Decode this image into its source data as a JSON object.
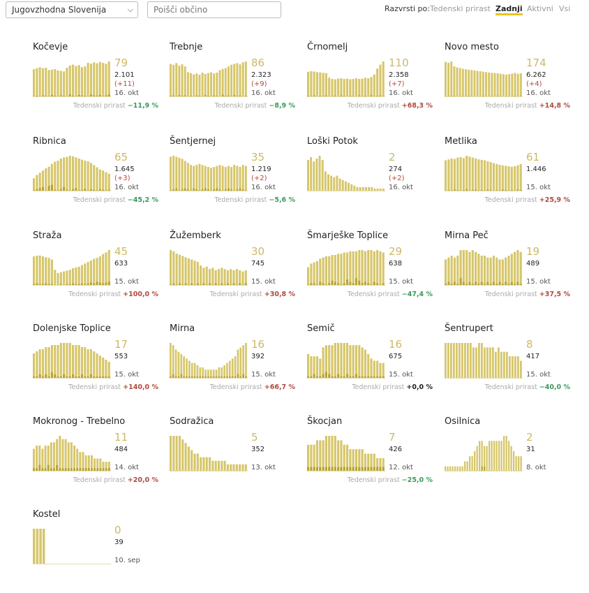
{
  "filters": {
    "region_selected": "Jugovzhodna Slovenija",
    "search_placeholder": "Poišči občino"
  },
  "sort": {
    "label": "Razvrsti po:",
    "options": [
      "Tedenski prirast",
      "Zadnji",
      "Aktivni",
      "Vsi"
    ],
    "active": "Zadnji"
  },
  "growth_label": "Tedenski prirast",
  "colors": {
    "bar": "#d6c66a",
    "bar_dark": "#b8a332",
    "accent": "#e8c51f",
    "number": "#cdb964",
    "neg": "#3a9a5b",
    "pos": "#b0493b"
  },
  "chart_data": [
    {
      "type": "bar",
      "name": "Kočevje",
      "big": "79",
      "total": "2.101",
      "delta": "(+11)",
      "date": "16. okt",
      "growth": "−11,9 %",
      "gsign": "neg",
      "values": [
        62,
        64,
        66,
        64,
        65,
        60,
        61,
        62,
        59,
        58,
        57,
        65,
        70,
        72,
        69,
        71,
        66,
        68,
        76,
        74,
        77,
        75,
        78,
        76,
        74,
        79
      ],
      "dark": [
        2,
        3,
        2,
        4,
        3,
        2,
        5,
        3,
        2,
        4,
        3,
        2,
        6,
        3,
        2,
        5,
        4,
        3,
        2,
        6,
        4,
        3,
        5,
        2,
        4,
        6
      ]
    },
    {
      "type": "bar",
      "name": "Trebnje",
      "big": "86",
      "total": "2.323",
      "delta": "(+9)",
      "date": "16. okt",
      "growth": "−8,9 %",
      "gsign": "neg",
      "values": [
        80,
        78,
        82,
        76,
        79,
        74,
        60,
        58,
        55,
        57,
        54,
        59,
        56,
        58,
        60,
        57,
        59,
        65,
        68,
        70,
        74,
        78,
        80,
        82,
        79,
        84,
        86
      ],
      "dark": [
        3,
        4,
        2,
        5,
        3,
        4,
        2,
        3,
        2,
        4,
        3,
        2,
        5,
        3,
        2,
        4,
        3,
        2,
        6,
        3,
        4,
        2,
        5,
        3,
        4,
        2,
        3
      ]
    },
    {
      "type": "bar",
      "name": "Črnomelj",
      "big": "110",
      "total": "2.358",
      "delta": "(+7)",
      "date": "16. okt",
      "growth": "+68,3 %",
      "gsign": "pos",
      "values": [
        78,
        80,
        79,
        77,
        76,
        75,
        74,
        60,
        56,
        55,
        57,
        58,
        56,
        57,
        55,
        56,
        58,
        56,
        57,
        60,
        58,
        62,
        70,
        88,
        100,
        110
      ],
      "dark": [
        4,
        3,
        5,
        2,
        4,
        3,
        5,
        2,
        3,
        4,
        2,
        5,
        3,
        2,
        4,
        3,
        2,
        5,
        3,
        4,
        2,
        6,
        3,
        4,
        5,
        3
      ]
    },
    {
      "type": "bar",
      "name": "Novo mesto",
      "big": "174",
      "total": "6.262",
      "delta": "(+4)",
      "date": "16. okt",
      "growth": "+14,8 %",
      "gsign": "pos",
      "values": [
        172,
        168,
        174,
        150,
        145,
        142,
        138,
        136,
        134,
        132,
        130,
        128,
        126,
        124,
        122,
        120,
        118,
        117,
        116,
        114,
        112,
        110,
        112,
        115,
        118,
        114,
        116
      ],
      "dark": [
        3,
        5,
        4,
        6,
        3,
        4,
        5,
        2,
        6,
        3,
        4,
        5,
        3,
        6,
        2,
        4,
        5,
        3,
        6,
        4,
        2,
        5,
        3,
        4,
        6,
        3,
        5
      ]
    },
    {
      "type": "bar",
      "name": "Ribnica",
      "big": "65",
      "total": "1.645",
      "delta": "(+3)",
      "date": "16. okt",
      "growth": "−45,2 %",
      "gsign": "neg",
      "values": [
        24,
        30,
        34,
        38,
        42,
        45,
        50,
        54,
        56,
        60,
        62,
        63,
        65,
        64,
        62,
        60,
        58,
        56,
        55,
        52,
        48,
        44,
        40,
        38,
        35,
        32
      ],
      "dark": [
        2,
        4,
        6,
        8,
        2,
        10,
        12,
        3,
        2,
        4,
        8,
        3,
        2,
        4,
        6,
        2,
        3,
        5,
        2,
        4,
        3,
        2,
        4,
        3,
        2,
        3
      ]
    },
    {
      "type": "bar",
      "name": "Šentjernej",
      "big": "35",
      "total": "1.219",
      "delta": "(+2)",
      "date": "16. okt",
      "growth": "−5,6 %",
      "gsign": "neg",
      "values": [
        34,
        35,
        34,
        33,
        32,
        30,
        28,
        26,
        25,
        26,
        27,
        26,
        25,
        24,
        23,
        24,
        25,
        26,
        25,
        24,
        25,
        24,
        26,
        25,
        24,
        26,
        25
      ],
      "dark": [
        1,
        2,
        3,
        1,
        2,
        3,
        2,
        1,
        3,
        2,
        1,
        2,
        3,
        2,
        1,
        2,
        3,
        2,
        1,
        2,
        3,
        2,
        1,
        2,
        3,
        2,
        1
      ]
    },
    {
      "type": "bar",
      "name": "Loški Potok",
      "big": "2",
      "total": "274",
      "delta": "(+2)",
      "date": "16. okt",
      "growth": "",
      "gsign": "zero",
      "values": [
        22,
        24,
        21,
        23,
        25,
        22,
        14,
        12,
        11,
        10,
        11,
        9,
        8,
        7,
        6,
        5,
        4,
        3,
        3,
        3,
        3,
        3,
        3,
        2,
        2,
        2,
        2
      ],
      "dark": [
        0,
        0,
        0,
        0,
        0,
        0,
        0,
        0,
        0,
        0,
        0,
        0,
        0,
        0,
        0,
        0,
        0,
        0,
        0,
        0,
        0,
        0,
        0,
        0,
        0,
        0,
        0
      ]
    },
    {
      "type": "bar",
      "name": "Metlika",
      "big": "61",
      "total": "1.446",
      "delta": "",
      "date": "15. okt",
      "growth": "+25,9 %",
      "gsign": "pos",
      "values": [
        68,
        70,
        72,
        71,
        74,
        75,
        73,
        78,
        76,
        74,
        72,
        70,
        69,
        68,
        66,
        64,
        62,
        60,
        58,
        57,
        56,
        55,
        54,
        55,
        57,
        60
      ],
      "dark": [
        2,
        3,
        2,
        4,
        3,
        2,
        3,
        5,
        2,
        3,
        4,
        2,
        3,
        2,
        4,
        3,
        2,
        3,
        2,
        4,
        3,
        2,
        3,
        2,
        4,
        3
      ]
    },
    {
      "type": "bar",
      "name": "Straža",
      "big": "45",
      "total": "633",
      "delta": "",
      "date": "15. okt",
      "growth": "+100,0 %",
      "gsign": "pos",
      "values": [
        37,
        38,
        38,
        37,
        36,
        35,
        33,
        20,
        16,
        17,
        18,
        19,
        20,
        22,
        23,
        24,
        26,
        28,
        30,
        32,
        34,
        35,
        37,
        40,
        42,
        45
      ],
      "dark": [
        2,
        3,
        2,
        2,
        3,
        2,
        2,
        1,
        1,
        2,
        1,
        2,
        2,
        3,
        2,
        2,
        3,
        2,
        3,
        4,
        3,
        5,
        4,
        3,
        4,
        5
      ]
    },
    {
      "type": "bar",
      "name": "Žužemberk",
      "big": "30",
      "total": "745",
      "delta": "",
      "date": "15. okt",
      "growth": "+30,8 %",
      "gsign": "pos",
      "values": [
        30,
        29,
        27,
        26,
        25,
        24,
        23,
        22,
        21,
        20,
        17,
        15,
        16,
        14,
        15,
        13,
        14,
        15,
        14,
        13,
        14,
        13,
        14,
        13,
        12,
        13
      ],
      "dark": [
        1,
        2,
        1,
        2,
        1,
        2,
        1,
        2,
        1,
        2,
        1,
        2,
        1,
        2,
        1,
        2,
        1,
        2,
        1,
        2,
        1,
        2,
        1,
        2,
        1,
        2
      ]
    },
    {
      "type": "bar",
      "name": "Šmarješke Toplice",
      "big": "29",
      "total": "638",
      "delta": "",
      "date": "15. okt",
      "growth": "−47,4 %",
      "gsign": "neg",
      "values": [
        15,
        18,
        19,
        20,
        22,
        23,
        24,
        24,
        25,
        25,
        26,
        26,
        27,
        27,
        28,
        28,
        28,
        29,
        29,
        28,
        29,
        29,
        28,
        29,
        28,
        27
      ],
      "dark": [
        1,
        2,
        2,
        1,
        3,
        2,
        1,
        2,
        4,
        3,
        2,
        1,
        2,
        5,
        3,
        2,
        6,
        4,
        2,
        3,
        2,
        1,
        3,
        2,
        1,
        2
      ]
    },
    {
      "type": "bar",
      "name": "Mirna Peč",
      "big": "19",
      "total": "489",
      "delta": "",
      "date": "15. okt",
      "growth": "+37,5 %",
      "gsign": "pos",
      "values": [
        14,
        15,
        16,
        15,
        16,
        19,
        19,
        19,
        18,
        19,
        18,
        17,
        16,
        16,
        15,
        15,
        16,
        15,
        14,
        14,
        15,
        16,
        17,
        18,
        19,
        18
      ],
      "dark": [
        1,
        2,
        1,
        2,
        1,
        4,
        2,
        1,
        2,
        1,
        2,
        1,
        2,
        1,
        2,
        1,
        2,
        1,
        2,
        1,
        2,
        1,
        2,
        1,
        2,
        1
      ]
    },
    {
      "type": "bar",
      "name": "Dolenjske Toplice",
      "big": "17",
      "total": "553",
      "delta": "",
      "date": "15. okt",
      "growth": "+140,0 %",
      "gsign": "pos",
      "values": [
        12,
        13,
        14,
        14,
        15,
        15,
        16,
        16,
        16,
        17,
        17,
        17,
        17,
        16,
        16,
        16,
        15,
        15,
        14,
        14,
        13,
        12,
        11,
        10,
        9,
        8
      ],
      "dark": [
        1,
        1,
        2,
        1,
        2,
        1,
        3,
        2,
        1,
        1,
        2,
        1,
        1,
        2,
        1,
        1,
        2,
        1,
        1,
        2,
        1,
        1,
        1,
        1,
        1,
        1
      ]
    },
    {
      "type": "bar",
      "name": "Mirna",
      "big": "16",
      "total": "392",
      "delta": "",
      "date": "15. okt",
      "growth": "+66,7 %",
      "gsign": "pos",
      "values": [
        16,
        15,
        13,
        12,
        11,
        10,
        9,
        8,
        7,
        7,
        6,
        5,
        5,
        4,
        4,
        4,
        4,
        4,
        5,
        5,
        6,
        7,
        8,
        9,
        10,
        13,
        14,
        15,
        16
      ],
      "dark": [
        1,
        2,
        1,
        1,
        2,
        1,
        1,
        1,
        1,
        1,
        1,
        1,
        1,
        1,
        1,
        1,
        1,
        1,
        1,
        1,
        1,
        1,
        1,
        1,
        1,
        2,
        1,
        2,
        1
      ]
    },
    {
      "type": "bar",
      "name": "Semič",
      "big": "16",
      "total": "675",
      "delta": "",
      "date": "15. okt",
      "growth": "+0,0 %",
      "gsign": "zero",
      "values": [
        11,
        10,
        10,
        10,
        9,
        14,
        15,
        15,
        15,
        16,
        16,
        16,
        16,
        16,
        15,
        15,
        15,
        15,
        14,
        13,
        11,
        9,
        8,
        8,
        7,
        7
      ],
      "dark": [
        1,
        1,
        2,
        1,
        1,
        2,
        3,
        2,
        1,
        1,
        2,
        1,
        1,
        2,
        1,
        1,
        2,
        1,
        1,
        1,
        1,
        1,
        1,
        1,
        1,
        1
      ]
    },
    {
      "type": "bar",
      "name": "Šentrupert",
      "big": "8",
      "total": "417",
      "delta": "",
      "date": "15. okt",
      "growth": "−40,0 %",
      "gsign": "neg",
      "values": [
        8,
        8,
        8,
        8,
        8,
        8,
        8,
        8,
        8,
        8,
        7,
        7,
        8,
        8,
        7,
        7,
        7,
        7,
        6,
        7,
        6,
        6,
        6,
        5,
        5,
        5,
        5,
        4
      ],
      "dark": [
        0,
        0,
        0,
        0,
        0,
        0,
        0,
        0,
        0,
        0,
        0,
        0,
        0,
        0,
        0,
        0,
        0,
        0,
        0,
        0,
        0,
        0,
        0,
        0,
        0,
        0,
        0,
        0
      ]
    },
    {
      "type": "bar",
      "name": "Mokronog - Trebelno",
      "big": "11",
      "total": "484",
      "delta": "",
      "date": "14. okt",
      "growth": "+20,0 %",
      "gsign": "pos",
      "values": [
        7,
        8,
        8,
        7,
        8,
        8,
        9,
        9,
        10,
        11,
        10,
        10,
        9,
        9,
        8,
        7,
        6,
        6,
        5,
        5,
        5,
        4,
        4,
        4,
        3,
        3,
        3
      ],
      "dark": [
        1,
        1,
        2,
        1,
        1,
        2,
        1,
        1,
        2,
        1,
        1,
        1,
        1,
        1,
        1,
        1,
        1,
        1,
        1,
        1,
        1,
        1,
        1,
        1,
        1,
        1,
        1
      ]
    },
    {
      "type": "bar",
      "name": "Sodražica",
      "big": "5",
      "total": "352",
      "delta": "",
      "date": "13. okt",
      "growth": "",
      "gsign": "zero",
      "values": [
        10,
        10,
        10,
        10,
        9,
        8,
        7,
        6,
        5,
        5,
        4,
        4,
        4,
        4,
        3,
        3,
        3,
        3,
        3,
        2,
        2,
        2,
        2,
        2,
        2,
        2
      ],
      "dark": [
        0,
        0,
        0,
        0,
        0,
        0,
        0,
        0,
        0,
        0,
        0,
        0,
        0,
        0,
        0,
        0,
        0,
        0,
        0,
        0,
        0,
        0,
        0,
        0,
        0,
        0
      ]
    },
    {
      "type": "bar",
      "name": "Škocjan",
      "big": "7",
      "total": "426",
      "delta": "",
      "date": "12. okt",
      "growth": "−25,0 %",
      "gsign": "neg",
      "values": [
        6,
        6,
        6,
        7,
        7,
        7,
        8,
        8,
        8,
        8,
        7,
        7,
        6,
        6,
        5,
        5,
        5,
        5,
        5,
        4,
        4,
        4,
        4,
        3,
        3,
        3
      ],
      "dark": [
        1,
        1,
        1,
        1,
        1,
        1,
        1,
        1,
        1,
        1,
        1,
        1,
        1,
        1,
        1,
        1,
        1,
        1,
        1,
        1,
        1,
        1,
        1,
        1,
        1,
        1
      ]
    },
    {
      "type": "bar",
      "name": "Osilnica",
      "big": "2",
      "total": "31",
      "delta": "",
      "date": "8. okt",
      "growth": "",
      "gsign": "zero",
      "values": [
        1,
        1,
        1,
        1,
        1,
        1,
        1,
        1,
        2,
        2,
        3,
        3,
        4,
        5,
        6,
        6,
        5,
        5,
        6,
        6,
        6,
        6,
        6,
        6,
        7,
        7,
        6,
        5,
        4,
        3,
        3,
        3
      ],
      "dark": [
        0,
        0,
        0,
        0,
        0,
        0,
        0,
        0,
        0,
        0,
        0,
        0,
        0,
        0,
        0,
        1,
        1,
        0,
        0,
        0,
        0,
        0,
        0,
        0,
        0,
        0,
        0,
        0,
        0,
        0,
        0,
        0
      ]
    },
    {
      "type": "bar",
      "name": "Kostel",
      "big": "0",
      "total": "39",
      "delta": "",
      "date": "10. sep",
      "growth": "",
      "gsign": "zero",
      "values": [
        3,
        3,
        3,
        3,
        0,
        0,
        0,
        0,
        0,
        0,
        0,
        0,
        0,
        0,
        0,
        0,
        0,
        0,
        0,
        0,
        0,
        0,
        0,
        0
      ],
      "dark": [
        0,
        0,
        0,
        0,
        0,
        0,
        0,
        0,
        0,
        0,
        0,
        0,
        0,
        0,
        0,
        0,
        0,
        0,
        0,
        0,
        0,
        0,
        0,
        0
      ]
    }
  ]
}
